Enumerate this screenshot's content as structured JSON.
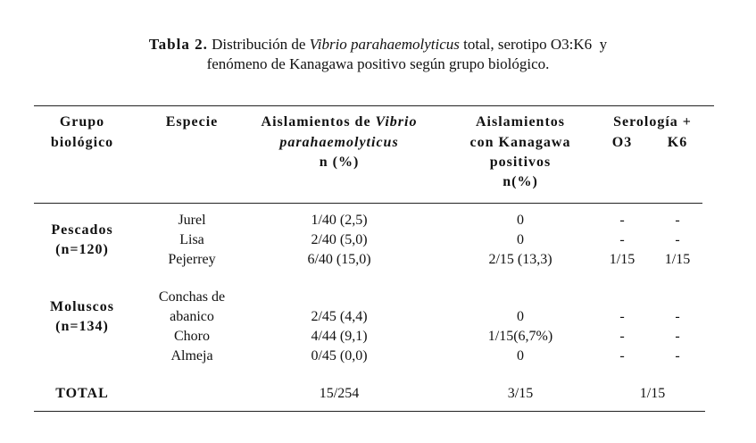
{
  "title": {
    "label": "Tabla 2.",
    "text_before": "Distribución de",
    "italic": "Vibrio parahaemolyticus",
    "text_after": "total, serotipo O3:K6  y",
    "line2": "fenómeno de Kanagawa positivo según grupo biológico."
  },
  "header": {
    "grupo": [
      "Grupo",
      "biológico"
    ],
    "especie": "Especie",
    "aislamientos": {
      "line1": "Aislamientos de",
      "line1_italic": "Vibrio",
      "line2": "parahaemolyticus",
      "line3": "n (%)"
    },
    "kanagawa": [
      "Aislamientos",
      "con Kanagawa",
      "positivos",
      "n(%)"
    ],
    "serologia": {
      "label": "Serología +",
      "o3": "O3",
      "k6": "K6"
    }
  },
  "groups": [
    {
      "name": "Pescados",
      "n": "(n=120)",
      "rows": [
        {
          "species": [
            "Jurel"
          ],
          "aislamientos": "1/40 (2,5)",
          "kanagawa": "0",
          "o3": "-",
          "k6": "-"
        },
        {
          "species": [
            "Lisa"
          ],
          "aislamientos": "2/40 (5,0)",
          "kanagawa": "0",
          "o3": "-",
          "k6": "-"
        },
        {
          "species": [
            "Pejerrey"
          ],
          "aislamientos": "6/40 (15,0)",
          "kanagawa": "2/15 (13,3)",
          "o3": "1/15",
          "k6": "1/15"
        }
      ]
    },
    {
      "name": "Moluscos",
      "n": "(n=134)",
      "rows": [
        {
          "species": [
            "Conchas de",
            "abanico"
          ],
          "aislamientos": "2/45 (4,4)",
          "kanagawa": "0",
          "o3": "-",
          "k6": "-"
        },
        {
          "species": [
            "Choro"
          ],
          "aislamientos": "4/44 (9,1)",
          "kanagawa": "1/15(6,7%)",
          "o3": "-",
          "k6": "-"
        },
        {
          "species": [
            "Almeja"
          ],
          "aislamientos": "0/45 (0,0)",
          "kanagawa": "0",
          "o3": "-",
          "k6": "-"
        }
      ]
    }
  ],
  "total": {
    "label": "TOTAL",
    "aislamientos": "15/254",
    "kanagawa": "3/15",
    "serologia": "1/15"
  }
}
